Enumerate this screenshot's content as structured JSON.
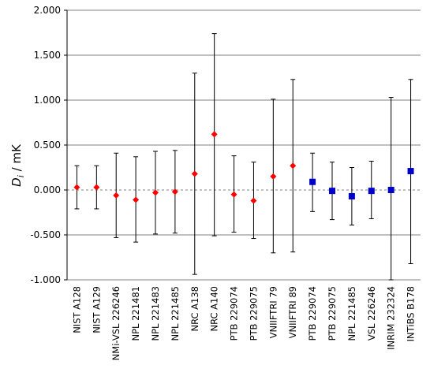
{
  "chart_data": {
    "type": "scatter",
    "title": "",
    "xlabel": "",
    "ylabel": {
      "main": "D",
      "subscript": "i",
      "suffix": " / mK"
    },
    "ylim": [
      -1.0,
      2.0
    ],
    "yticks": [
      2.0,
      1.5,
      1.0,
      0.5,
      0.0,
      -0.5,
      -1.0
    ],
    "ytick_labels": [
      "2.000",
      "1.500",
      "1.000",
      "0.500",
      "0.000",
      "-0.500",
      "-1.000"
    ],
    "grid": "horizontal",
    "zero_line": "dashed",
    "colors": {
      "red_marker": "#ff0000",
      "blue_marker": "#0000cc",
      "grid": "#808080",
      "error_bar": "#000000"
    },
    "categories": [
      "NIST A128",
      "NIST A129",
      "NMi-VSL 226246",
      "NPL 221481",
      "NPL 221483",
      "NPL 221485",
      "NRC A138",
      "NRC A140",
      "PTB 229074",
      "PTB 229075",
      "VNIIFTRI 79",
      "VNIIFTRI 89",
      "PTB 229074",
      "PTB 229075",
      "NPL 221485",
      "VSL 226246",
      "INRIM 232324",
      "INTiBS B178"
    ],
    "series": [
      {
        "marker": "diamond",
        "color": "#ff0000",
        "indices": [
          0,
          1,
          2,
          3,
          4,
          5,
          6,
          7,
          8,
          9,
          10,
          11
        ],
        "values": [
          0.03,
          0.03,
          -0.06,
          -0.11,
          -0.03,
          -0.02,
          0.18,
          0.62,
          -0.05,
          -0.12,
          0.15,
          0.27
        ],
        "err_low": [
          -0.21,
          -0.21,
          -0.53,
          -0.58,
          -0.49,
          -0.48,
          -0.94,
          -0.51,
          -0.47,
          -0.54,
          -0.7,
          -0.69
        ],
        "err_high": [
          0.27,
          0.27,
          0.41,
          0.37,
          0.43,
          0.44,
          1.3,
          1.74,
          0.38,
          0.31,
          1.01,
          1.23
        ]
      },
      {
        "marker": "square",
        "color": "#0000cc",
        "indices": [
          12,
          13,
          14,
          15,
          16,
          17
        ],
        "values": [
          0.09,
          -0.01,
          -0.07,
          -0.01,
          0.0,
          0.21
        ],
        "err_low": [
          -0.24,
          -0.33,
          -0.39,
          -0.32,
          -1.0,
          -0.82
        ],
        "err_high": [
          0.41,
          0.31,
          0.25,
          0.32,
          1.03,
          1.23
        ]
      }
    ]
  }
}
